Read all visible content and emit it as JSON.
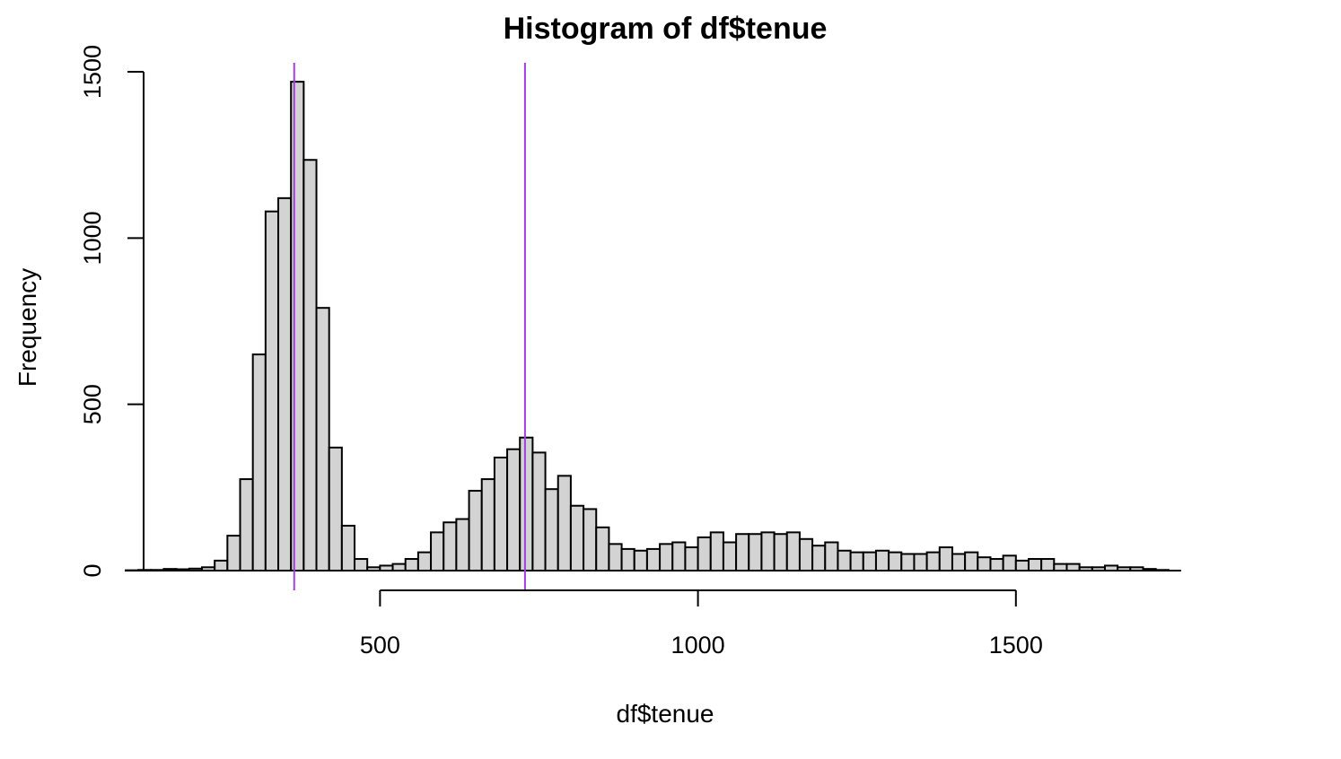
{
  "chart_data": {
    "type": "bar",
    "title": "Histogram of df$tenue",
    "xlabel": "df$tenue",
    "ylabel": "Frequency",
    "xlim": [
      100,
      1760
    ],
    "ylim": [
      0,
      1500
    ],
    "x_ticks": [
      500,
      1000,
      1500
    ],
    "y_ticks": [
      0,
      500,
      1000,
      1500
    ],
    "bin_width": 20,
    "bin_start": 100,
    "values": [
      1,
      2,
      2,
      5,
      4,
      6,
      10,
      30,
      105,
      275,
      650,
      1080,
      1120,
      1470,
      1235,
      790,
      370,
      135,
      35,
      10,
      15,
      20,
      35,
      55,
      115,
      145,
      155,
      240,
      275,
      340,
      365,
      400,
      355,
      245,
      285,
      195,
      185,
      130,
      80,
      65,
      60,
      65,
      80,
      85,
      70,
      100,
      115,
      85,
      110,
      110,
      115,
      110,
      115,
      95,
      75,
      85,
      60,
      55,
      55,
      60,
      55,
      50,
      50,
      55,
      70,
      50,
      55,
      40,
      35,
      45,
      30,
      35,
      35,
      20,
      20,
      10,
      10,
      15,
      10,
      10,
      5,
      2
    ],
    "bar_fill": "#d3d3d3",
    "bar_stroke": "#000000",
    "vlines": [
      {
        "x": 365,
        "color": "#a43de0"
      },
      {
        "x": 728,
        "color": "#a43de0"
      }
    ],
    "grid": false,
    "legend": "none"
  }
}
